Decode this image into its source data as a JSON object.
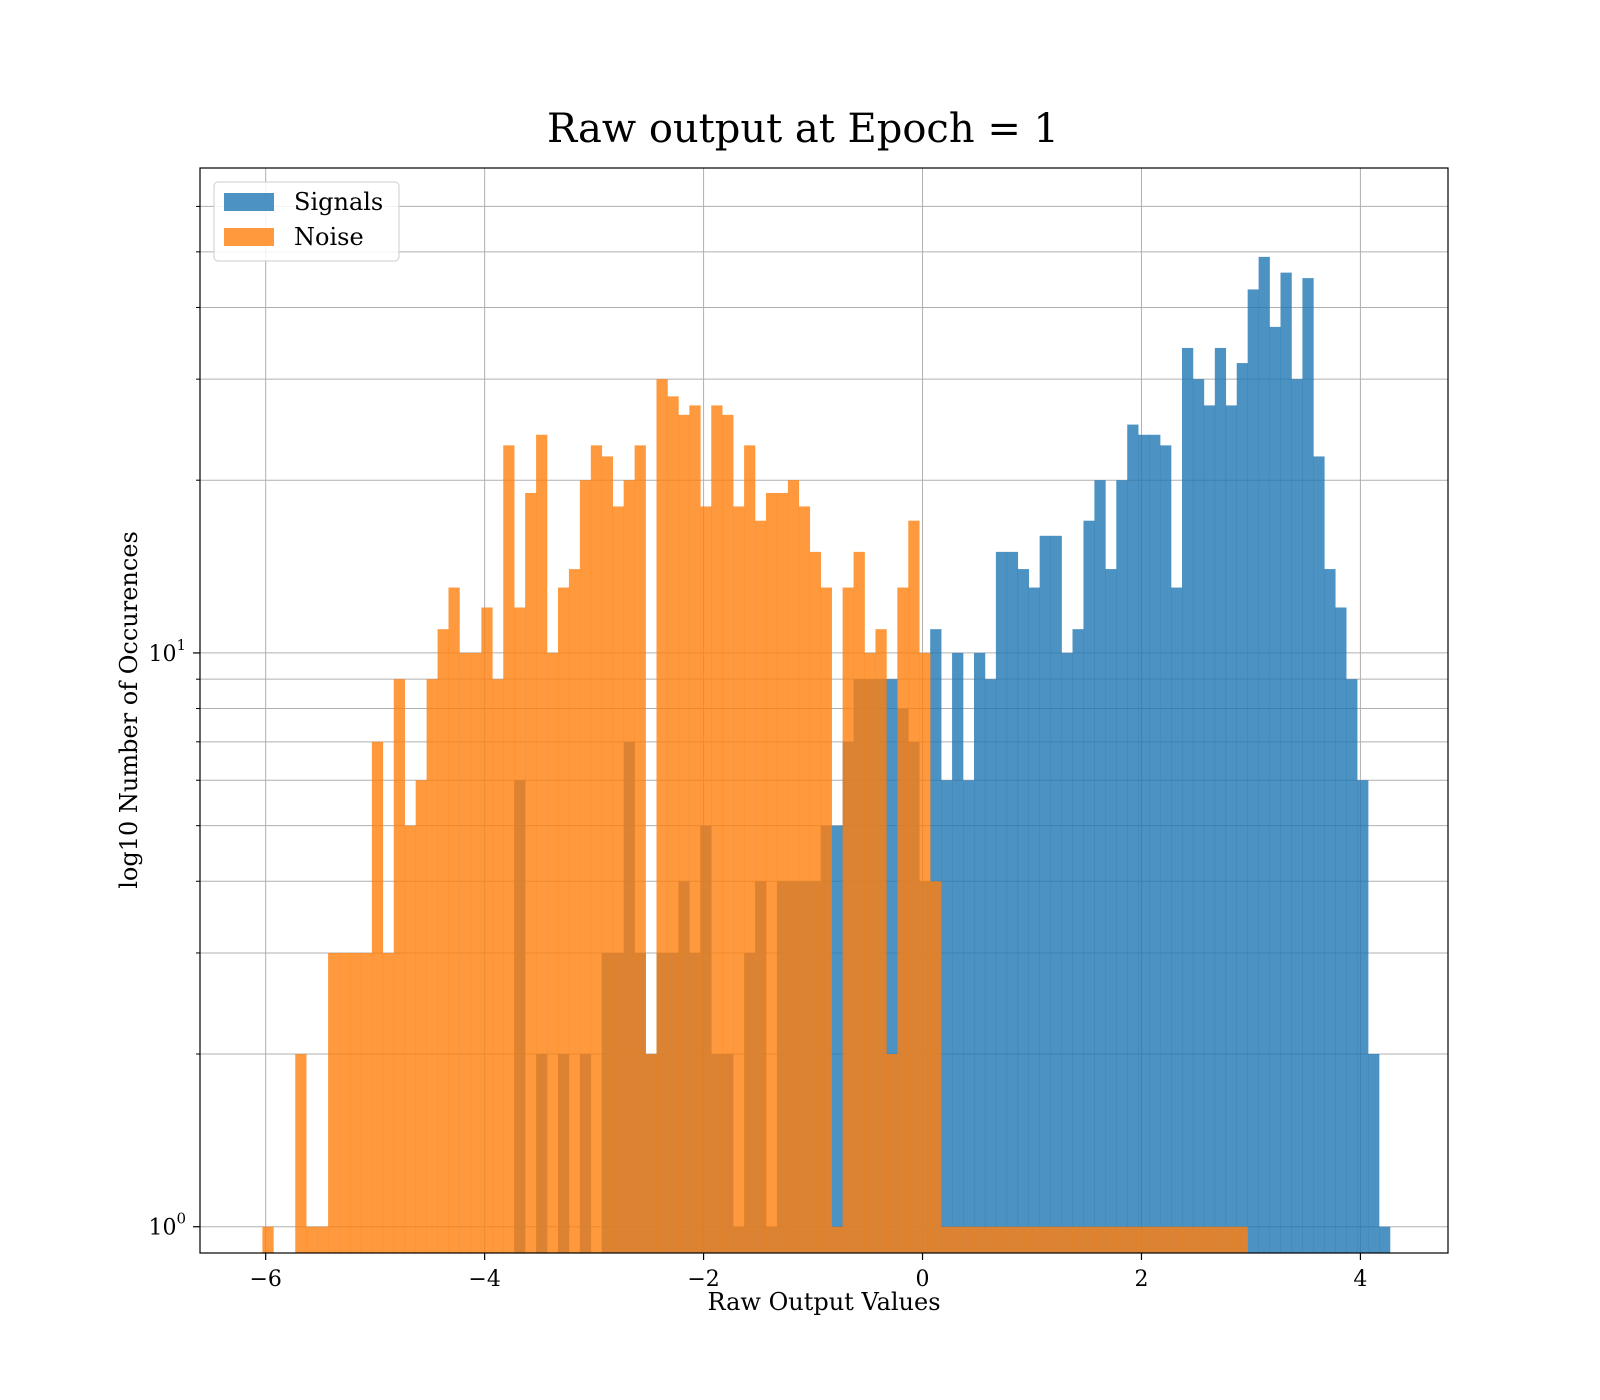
{
  "chart_data": {
    "type": "bar",
    "title": "Raw output at Epoch = 1",
    "xlabel": "Raw Output Values",
    "ylabel": "log10 Number of Occurences",
    "yscale": "log",
    "xlim": [
      -6.6,
      4.8
    ],
    "ylim": [
      0.9,
      70
    ],
    "grid": true,
    "legend_position": "top-left",
    "x_tick_labels": [
      {
        "value": -6,
        "label": "−6"
      },
      {
        "value": -4,
        "label": "−4"
      },
      {
        "value": -2,
        "label": "−2"
      },
      {
        "value": 0,
        "label": "0"
      },
      {
        "value": 2,
        "label": "2"
      },
      {
        "value": 4,
        "label": "4"
      }
    ],
    "y_tick_labels": [
      {
        "value": 1,
        "base": "10",
        "exp": "0"
      },
      {
        "value": 10,
        "base": "10",
        "exp": "1"
      }
    ],
    "series": [
      {
        "name": "Signals",
        "color": "#1f77b4",
        "alpha": 0.8,
        "bin_width": 0.1,
        "bin_starts": [
          -3.73,
          -3.53,
          -3.33,
          -3.13,
          -2.93,
          -2.83,
          -2.73,
          -2.63,
          -2.53,
          -2.43,
          -2.33,
          -2.23,
          -2.13,
          -2.03,
          -1.93,
          -1.83,
          -1.73,
          -1.63,
          -1.53,
          -1.43,
          -1.33,
          -1.23,
          -1.13,
          -1.03,
          -0.93,
          -0.83,
          -0.73,
          -0.63,
          -0.53,
          -0.43,
          -0.33,
          -0.23,
          -0.13,
          -0.03,
          0.07,
          0.17,
          0.27,
          0.37,
          0.47,
          0.57,
          0.67,
          0.77,
          0.87,
          0.97,
          1.07,
          1.17,
          1.27,
          1.37,
          1.47,
          1.57,
          1.67,
          1.77,
          1.87,
          1.97,
          2.07,
          2.17,
          2.27,
          2.37,
          2.47,
          2.57,
          2.67,
          2.77,
          2.87,
          2.97,
          3.07,
          3.17,
          3.27,
          3.37,
          3.47,
          3.57,
          3.67,
          3.77,
          3.87,
          3.97,
          4.07,
          4.17
        ],
        "values": [
          6,
          2,
          2,
          2,
          3,
          3,
          7,
          3,
          2,
          3,
          3,
          4,
          3,
          5,
          2,
          2,
          1,
          3,
          4,
          1,
          4,
          4,
          4,
          4,
          5,
          5,
          7,
          9,
          9,
          9,
          9,
          8,
          7,
          4,
          11,
          6,
          10,
          6,
          10,
          9,
          15,
          15,
          14,
          13,
          16,
          16,
          10,
          11,
          17,
          20,
          14,
          20,
          25,
          24,
          24,
          23,
          13,
          34,
          30,
          27,
          34,
          27,
          32,
          43,
          49,
          37,
          46,
          30,
          45,
          22,
          14,
          12,
          9,
          6,
          2,
          1
        ]
      },
      {
        "name": "Noise",
        "color": "#ff7f0e",
        "alpha": 0.8,
        "bin_width": 0.1,
        "bin_starts": [
          -6.03,
          -5.73,
          -5.63,
          -5.53,
          -5.43,
          -5.33,
          -5.23,
          -5.13,
          -5.03,
          -4.93,
          -4.83,
          -4.73,
          -4.63,
          -4.53,
          -4.43,
          -4.33,
          -4.23,
          -4.13,
          -4.03,
          -3.93,
          -3.83,
          -3.73,
          -3.63,
          -3.53,
          -3.43,
          -3.33,
          -3.23,
          -3.13,
          -3.03,
          -2.93,
          -2.83,
          -2.73,
          -2.63,
          -2.53,
          -2.43,
          -2.33,
          -2.23,
          -2.13,
          -2.03,
          -1.93,
          -1.83,
          -1.73,
          -1.63,
          -1.53,
          -1.43,
          -1.33,
          -1.23,
          -1.13,
          -1.03,
          -0.93,
          -0.83,
          -0.73,
          -0.63,
          -0.53,
          -0.43,
          -0.33,
          -0.23,
          -0.13,
          -0.03,
          0.07,
          0.17,
          0.27,
          0.37,
          0.47,
          0.57,
          0.67,
          0.77,
          0.87,
          0.97,
          1.07,
          1.17,
          1.27,
          1.37,
          1.47,
          1.57,
          1.67,
          1.77,
          1.87,
          1.97,
          2.07,
          2.17,
          2.27,
          2.37,
          2.47,
          2.57,
          2.67,
          2.77,
          2.87
        ],
        "values": [
          1,
          2,
          1,
          1,
          3,
          3,
          3,
          3,
          7,
          3,
          9,
          5,
          6,
          9,
          11,
          13,
          10,
          10,
          12,
          9,
          23,
          12,
          19,
          24,
          10,
          13,
          14,
          20,
          23,
          22,
          18,
          20,
          23,
          2,
          30,
          28,
          26,
          27,
          18,
          27,
          26,
          18,
          23,
          17,
          19,
          19,
          20,
          18,
          15,
          13,
          1,
          13,
          15,
          10,
          11,
          2,
          13,
          17,
          10,
          4,
          1,
          1,
          1,
          1,
          1,
          1,
          1,
          1,
          1,
          1,
          1,
          1,
          1,
          1,
          1,
          1,
          1,
          1,
          1,
          1,
          1,
          1,
          1,
          1,
          1,
          1,
          1,
          1
        ]
      }
    ]
  }
}
